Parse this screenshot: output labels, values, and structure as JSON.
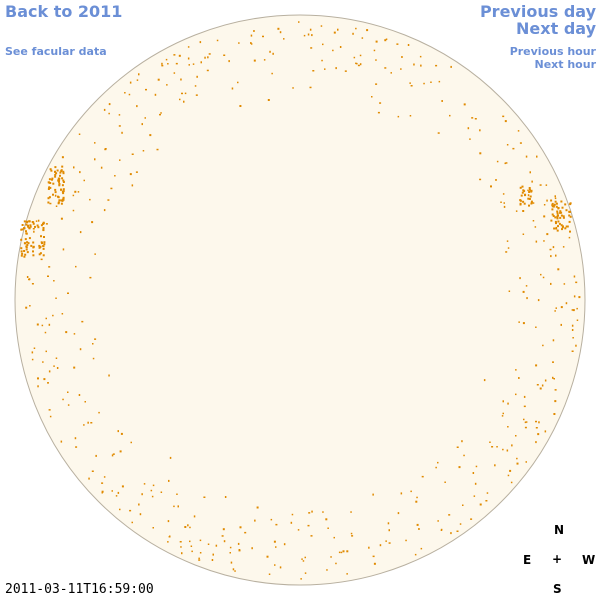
{
  "nav": {
    "back_year": "Back to 2011",
    "see_facular": "See facular data",
    "previous_day": "Previous day",
    "next_day": "Next day",
    "previous_hour": "Previous hour",
    "next_hour": "Next hour"
  },
  "compass": {
    "north": "N",
    "south": "S",
    "east": "E",
    "west": "W",
    "center": "+"
  },
  "timestamp": "2011-03-11T16:59:00",
  "colors": {
    "link": "#6b8fd6",
    "disk_fill": "#fdf8ec",
    "disk_stroke": "#b8b0a0",
    "facula": "#e08a00"
  },
  "icons": {
    "sun_disk": "solar-disk-icon",
    "compass_center": "crosshair-icon"
  }
}
